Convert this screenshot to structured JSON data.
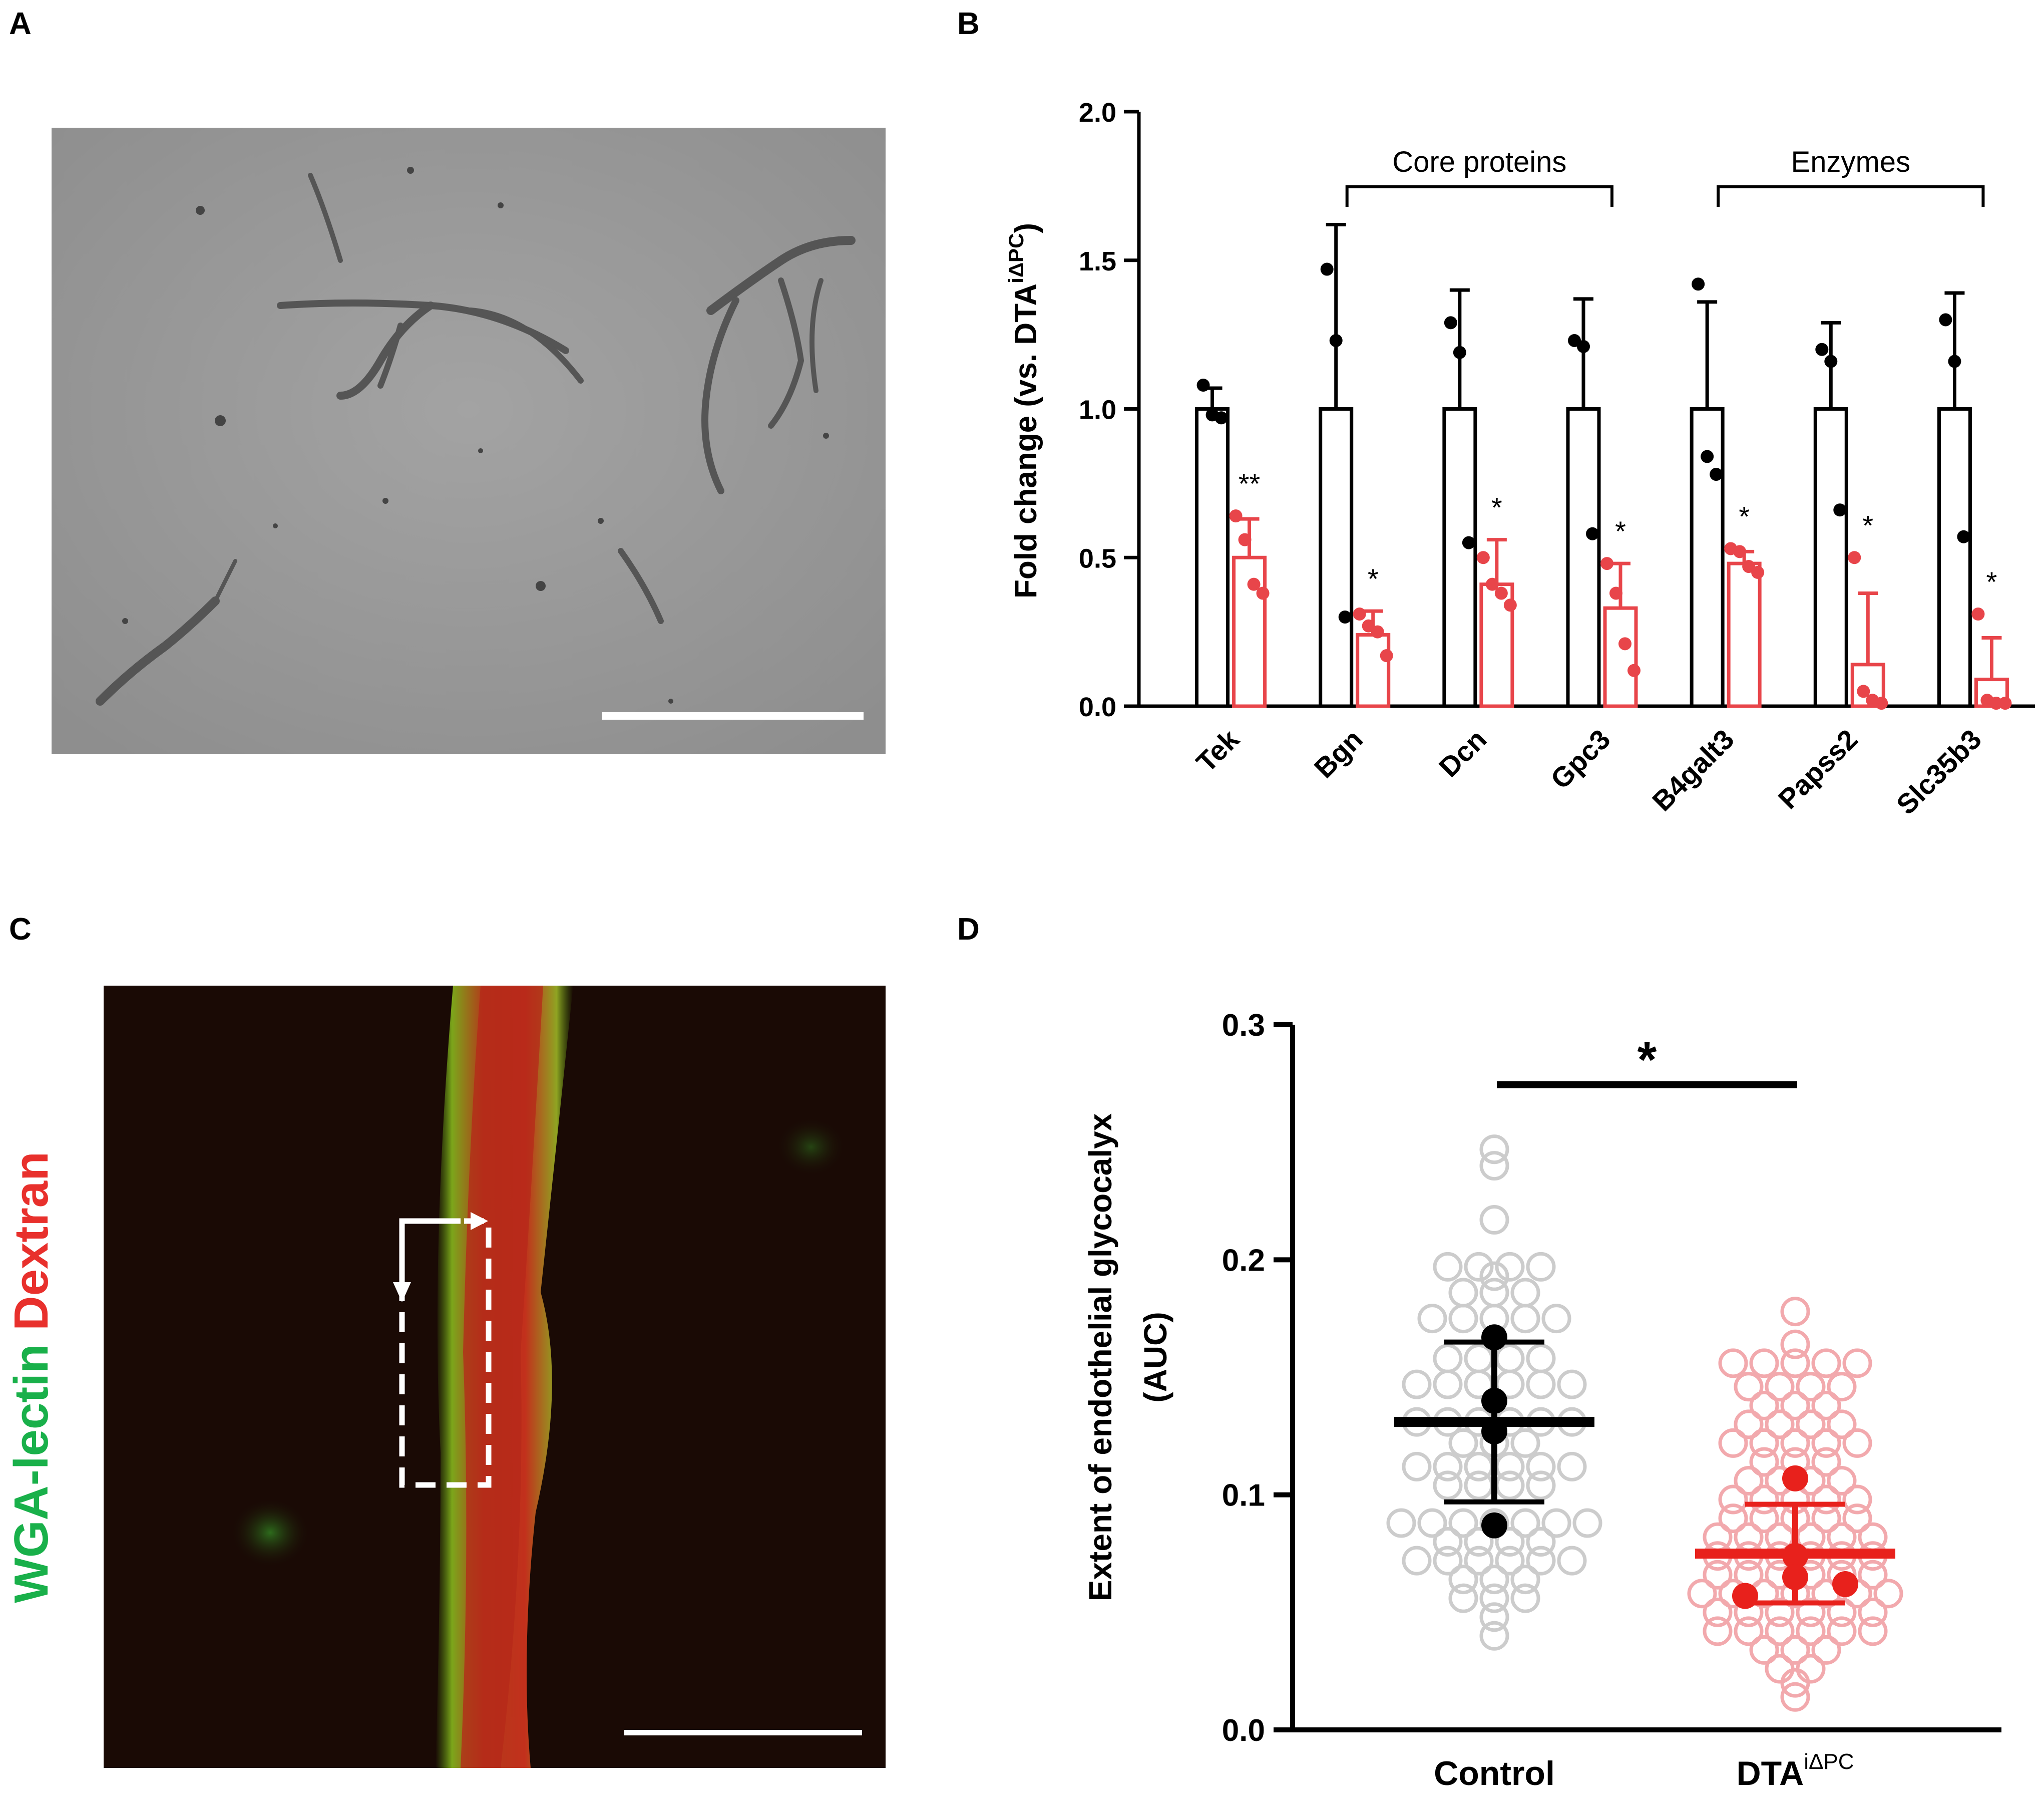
{
  "panels": {
    "a": {
      "letter": "A"
    },
    "b": {
      "letter": "B"
    },
    "c": {
      "letter": "C"
    },
    "d": {
      "letter": "D"
    }
  },
  "micrograph_c": {
    "label_green": "WGA-lectin",
    "label_red": "Dextran",
    "green_color": "#19b04a",
    "red_color": "#e8302c"
  },
  "chart_data": [
    {
      "panel": "B",
      "type": "bar",
      "ylabel_main": "Fold change (vs. DTA",
      "ylabel_sup": "iΔPC",
      "ylabel_close": ")",
      "ylim": [
        0,
        2.0
      ],
      "yticks": [
        "0.0",
        "0.5",
        "1.0",
        "1.5",
        "2.0"
      ],
      "ytick_values": [
        0,
        0.5,
        1.0,
        1.5,
        2.0
      ],
      "categories": [
        "Tek",
        "Bgn",
        "Dcn",
        "Gpc3",
        "B4galt3",
        "Papss2",
        "Slc35b3"
      ],
      "brackets": [
        {
          "label": "Core proteins",
          "from": "Bgn",
          "to": "Gpc3"
        },
        {
          "label": "Enzymes",
          "from": "B4galt3",
          "to": "Slc35b3"
        }
      ],
      "series": [
        {
          "color": "#000000",
          "means": [
            1.0,
            1.0,
            1.0,
            1.0,
            1.0,
            1.0,
            1.0
          ],
          "sd": [
            0.07,
            0.62,
            0.4,
            0.37,
            0.36,
            0.29,
            0.39
          ],
          "points": [
            [
              1.08,
              0.98,
              0.97
            ],
            [
              1.47,
              1.23,
              0.3
            ],
            [
              1.29,
              1.19,
              0.55
            ],
            [
              1.23,
              1.21,
              0.58
            ],
            [
              1.42,
              0.84,
              0.78
            ],
            [
              1.2,
              1.16,
              0.66
            ],
            [
              1.3,
              1.16,
              0.57
            ]
          ]
        },
        {
          "color": "#e8454a",
          "means": [
            0.5,
            0.24,
            0.41,
            0.33,
            0.48,
            0.14,
            0.09
          ],
          "sd": [
            0.13,
            0.08,
            0.15,
            0.15,
            0.04,
            0.24,
            0.14
          ],
          "points": [
            [
              0.64,
              0.56,
              0.41,
              0.38
            ],
            [
              0.31,
              0.27,
              0.25,
              0.17
            ],
            [
              0.5,
              0.41,
              0.38,
              0.34
            ],
            [
              0.48,
              0.38,
              0.21,
              0.12
            ],
            [
              0.53,
              0.52,
              0.47,
              0.45
            ],
            [
              0.5,
              0.05,
              0.02,
              0.01
            ],
            [
              0.31,
              0.02,
              0.01,
              0.01
            ]
          ]
        }
      ],
      "significance": [
        "**",
        "*",
        "*",
        "*",
        "*",
        "*",
        "*"
      ]
    },
    {
      "panel": "D",
      "type": "scatter",
      "ylabel_line1": "Extent of endothelial glycocalyx",
      "ylabel_line2": "(AUC)",
      "ylim": [
        0,
        0.3
      ],
      "yticks": [
        "0.0",
        "0.1",
        "0.2",
        "0.3"
      ],
      "ytick_values": [
        0,
        0.1,
        0.2,
        0.3
      ],
      "categories": [
        "Control",
        "DTA"
      ],
      "category_sup": [
        "",
        "iΔPC"
      ],
      "significance": "*",
      "series": [
        {
          "color": "#000000",
          "light_color": "#cccccc",
          "mean": 0.131,
          "sem_low": 0.097,
          "sem_high": 0.165,
          "subject_means": [
            0.167,
            0.14,
            0.127,
            0.087
          ],
          "cells": [
            0.247,
            0.24,
            0.217,
            0.197,
            0.197,
            0.197,
            0.197,
            0.193,
            0.186,
            0.186,
            0.186,
            0.175,
            0.175,
            0.175,
            0.175,
            0.175,
            0.158,
            0.158,
            0.158,
            0.158,
            0.147,
            0.147,
            0.147,
            0.147,
            0.147,
            0.147,
            0.131,
            0.131,
            0.131,
            0.131,
            0.131,
            0.131,
            0.122,
            0.122,
            0.122,
            0.112,
            0.112,
            0.112,
            0.112,
            0.112,
            0.112,
            0.104,
            0.104,
            0.104,
            0.104,
            0.088,
            0.088,
            0.088,
            0.088,
            0.088,
            0.088,
            0.088,
            0.08,
            0.08,
            0.08,
            0.08,
            0.072,
            0.072,
            0.072,
            0.072,
            0.072,
            0.072,
            0.064,
            0.064,
            0.064,
            0.056,
            0.056,
            0.056,
            0.048,
            0.04
          ]
        },
        {
          "color": "#e8211c",
          "light_color": "#f2a9ad",
          "mean": 0.075,
          "sem_low": 0.054,
          "sem_high": 0.096,
          "subject_means": [
            0.107,
            0.074,
            0.065,
            0.062,
            0.057
          ],
          "cells": [
            0.178,
            0.164,
            0.156,
            0.156,
            0.156,
            0.156,
            0.156,
            0.146,
            0.146,
            0.146,
            0.146,
            0.138,
            0.138,
            0.138,
            0.13,
            0.13,
            0.13,
            0.13,
            0.122,
            0.122,
            0.122,
            0.122,
            0.122,
            0.114,
            0.114,
            0.114,
            0.106,
            0.106,
            0.106,
            0.106,
            0.098,
            0.098,
            0.098,
            0.098,
            0.098,
            0.09,
            0.09,
            0.09,
            0.09,
            0.09,
            0.082,
            0.082,
            0.082,
            0.082,
            0.082,
            0.082,
            0.074,
            0.074,
            0.074,
            0.074,
            0.074,
            0.074,
            0.066,
            0.066,
            0.066,
            0.066,
            0.066,
            0.066,
            0.058,
            0.058,
            0.058,
            0.058,
            0.058,
            0.058,
            0.058,
            0.05,
            0.05,
            0.05,
            0.05,
            0.05,
            0.05,
            0.042,
            0.042,
            0.042,
            0.042,
            0.042,
            0.042,
            0.034,
            0.034,
            0.034,
            0.026,
            0.026,
            0.02,
            0.014
          ]
        }
      ]
    }
  ]
}
